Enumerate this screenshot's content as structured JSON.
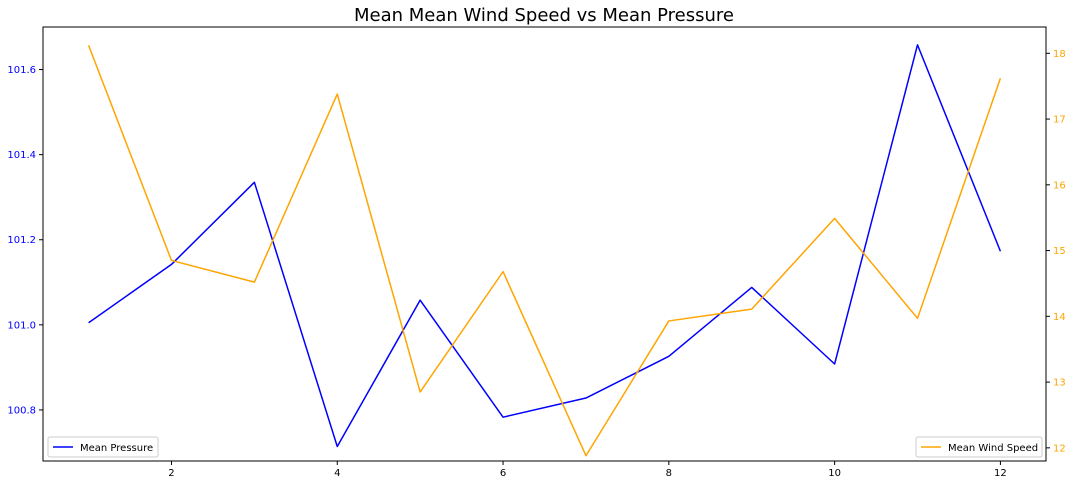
{
  "chart_data": {
    "type": "line",
    "title": "Mean Mean Wind Speed vs Mean Pressure",
    "xlabel": "",
    "x": [
      1,
      2,
      3,
      4,
      5,
      6,
      7,
      8,
      9,
      10,
      11,
      12
    ],
    "xticks": [
      2,
      4,
      6,
      8,
      10,
      12
    ],
    "xlim": [
      0.45,
      12.55
    ],
    "left_axis": {
      "label": "",
      "color": "#0000ff",
      "ylim": [
        100.68,
        101.7
      ],
      "ticks": [
        100.8,
        101.0,
        101.2,
        101.4,
        101.6
      ],
      "tick_labels": [
        "100.8",
        "101.0",
        "101.2",
        "101.4",
        "101.6"
      ]
    },
    "right_axis": {
      "label": "",
      "color": "#ffa500",
      "ylim": [
        11.8,
        18.4
      ],
      "ticks": [
        12,
        13,
        14,
        15,
        16,
        17,
        18
      ],
      "tick_labels": [
        "12",
        "13",
        "14",
        "15",
        "16",
        "17",
        "18"
      ]
    },
    "series": [
      {
        "name": "Mean Pressure",
        "axis": "left",
        "color": "#0000ff",
        "values": [
          101.005,
          101.142,
          101.335,
          100.714,
          101.058,
          100.783,
          100.828,
          100.926,
          101.088,
          100.908,
          101.658,
          101.173
        ]
      },
      {
        "name": "Mean Wind Speed",
        "axis": "right",
        "color": "#ffa500",
        "values": [
          18.12,
          14.85,
          14.52,
          17.38,
          12.85,
          14.68,
          11.88,
          13.93,
          14.11,
          15.49,
          13.97,
          17.62
        ]
      }
    ],
    "legends": [
      {
        "series": "Mean Pressure",
        "placement": "lower-left"
      },
      {
        "series": "Mean Wind Speed",
        "placement": "lower-right"
      }
    ],
    "grid": false
  }
}
